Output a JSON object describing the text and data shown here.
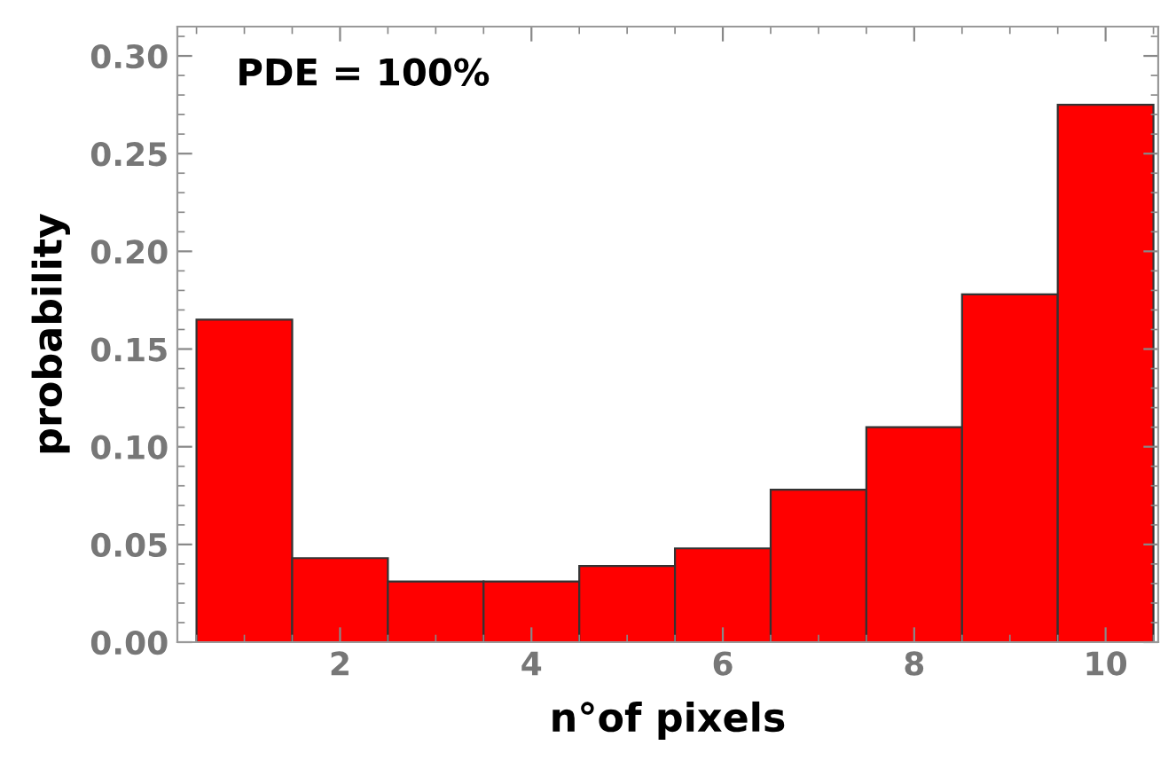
{
  "chart_data": {
    "type": "histogram",
    "xlabel": "n°of pixels",
    "ylabel": "probability",
    "annotations": [
      "PDE = 100%"
    ],
    "bins": [
      0.5,
      1.5,
      2.5,
      3.5,
      4.5,
      5.5,
      6.5,
      7.5,
      8.5,
      9.5,
      10.5
    ],
    "values": [
      0.165,
      0.043,
      0.031,
      0.031,
      0.039,
      0.048,
      0.078,
      0.11,
      0.178,
      0.275
    ],
    "color": "#ff0000",
    "xlim": [
      0.3,
      10.55
    ],
    "ylim": [
      0,
      0.315
    ],
    "xticks": [
      2,
      4,
      6,
      8,
      10
    ],
    "yticks": [
      {
        "value": 0,
        "label": "0.00"
      },
      {
        "value": 0.05,
        "label": "0.05"
      },
      {
        "value": 0.1,
        "label": "0.10"
      },
      {
        "value": 0.15,
        "label": "0.15"
      },
      {
        "value": 0.2,
        "label": "0.20"
      },
      {
        "value": 0.25,
        "label": "0.25"
      },
      {
        "value": 0.3,
        "label": "0.30"
      }
    ],
    "grid": false
  }
}
